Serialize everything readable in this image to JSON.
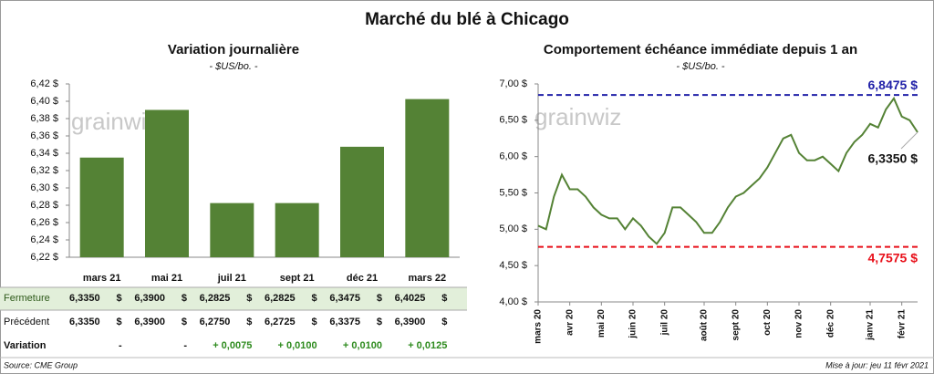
{
  "title": "Marché du blé à Chicago",
  "logo": "grainwiz",
  "chart_data": [
    {
      "type": "bar",
      "title": "Variation journalière",
      "subtitle": "- $US/bo. -",
      "categories": [
        "mars 21",
        "mai 21",
        "juil 21",
        "sept 21",
        "déc 21",
        "mars 22"
      ],
      "values": [
        6.335,
        6.39,
        6.2825,
        6.2825,
        6.3475,
        6.4025
      ],
      "color": "#548235",
      "ylim": [
        6.22,
        6.42
      ],
      "yticks": [
        {
          "value": 6.22,
          "label": "6,22 $"
        },
        {
          "value": 6.24,
          "label": "6,24 $"
        },
        {
          "value": 6.26,
          "label": "6,26 $"
        },
        {
          "value": 6.28,
          "label": "6,28 $"
        },
        {
          "value": 6.3,
          "label": "6,30 $"
        },
        {
          "value": 6.32,
          "label": "6,32 $"
        },
        {
          "value": 6.34,
          "label": "6,34 $"
        },
        {
          "value": 6.36,
          "label": "6,36 $"
        },
        {
          "value": 6.38,
          "label": "6,38 $"
        },
        {
          "value": 6.4,
          "label": "6,40 $"
        },
        {
          "value": 6.42,
          "label": "6,42 $"
        }
      ],
      "grid": false
    },
    {
      "type": "line",
      "title": "Comportement échéance immédiate depuis 1 an",
      "subtitle": "- $US/bo. -",
      "categories": [
        "mars 20",
        null,
        null,
        null,
        "avr 20",
        null,
        null,
        null,
        "mai 20",
        null,
        null,
        null,
        "juin 20",
        null,
        null,
        null,
        "juil 20",
        null,
        null,
        null,
        null,
        "août 20",
        null,
        null,
        null,
        "sept 20",
        null,
        null,
        null,
        "oct 20",
        null,
        null,
        null,
        "nov 20",
        null,
        null,
        null,
        "déc 20",
        null,
        null,
        null,
        null,
        "janv 21",
        null,
        null,
        null,
        "févr 21",
        null,
        null
      ],
      "values": [
        5.05,
        5.0,
        5.45,
        5.75,
        5.55,
        5.55,
        5.45,
        5.3,
        5.2,
        5.15,
        5.15,
        5.0,
        5.15,
        5.05,
        4.9,
        4.8,
        4.95,
        5.3,
        5.3,
        5.2,
        5.1,
        4.95,
        4.95,
        5.1,
        5.3,
        5.45,
        5.5,
        5.6,
        5.7,
        5.85,
        6.05,
        6.25,
        6.3,
        6.05,
        5.95,
        5.95,
        6.0,
        5.9,
        5.8,
        6.05,
        6.2,
        6.3,
        6.45,
        6.4,
        6.65,
        6.8,
        6.55,
        6.5,
        6.335
      ],
      "color": "#548235",
      "ylim": [
        4.0,
        7.0
      ],
      "yticks": [
        {
          "value": 4.0,
          "label": "4,00 $"
        },
        {
          "value": 4.5,
          "label": "4,50 $"
        },
        {
          "value": 5.0,
          "label": "5,00 $"
        },
        {
          "value": 5.5,
          "label": "5,50 $"
        },
        {
          "value": 6.0,
          "label": "6,00 $"
        },
        {
          "value": 6.5,
          "label": "6,50 $"
        },
        {
          "value": 7.0,
          "label": "7,00 $"
        }
      ],
      "grid": false,
      "reference_lines": [
        {
          "value": 6.8475,
          "label": "6,8475 $",
          "color": "#2020a8"
        },
        {
          "value": 4.7575,
          "label": "4,7575 $",
          "color": "#e8101a"
        }
      ],
      "annotation": {
        "value": 6.335,
        "label": "6,3350 $"
      }
    }
  ],
  "table": {
    "rows": [
      {
        "label": "Fermeture",
        "cells": [
          "6,3350",
          "6,3900",
          "6,2825",
          "6,2825",
          "6,3475",
          "6,4025"
        ],
        "unit": "$"
      },
      {
        "label": "Précédent",
        "cells": [
          "6,3350",
          "6,3900",
          "6,2750",
          "6,2725",
          "6,3375",
          "6,3900"
        ],
        "unit": "$"
      },
      {
        "label": "Variation",
        "cells": [
          "-",
          "-",
          "+ 0,0075",
          "+ 0,0100",
          "+ 0,0100",
          "+ 0,0125"
        ]
      }
    ]
  },
  "footer": {
    "source": "Source: CME Group",
    "updated": "Mise à jour: jeu 11 févr 2021"
  }
}
